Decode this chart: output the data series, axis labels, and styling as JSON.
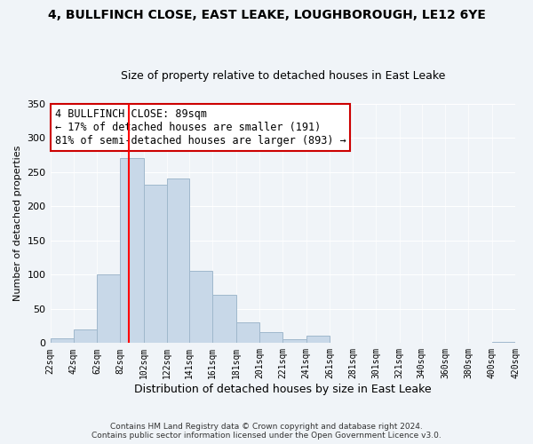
{
  "title": "4, BULLFINCH CLOSE, EAST LEAKE, LOUGHBOROUGH, LE12 6YE",
  "subtitle": "Size of property relative to detached houses in East Leake",
  "xlabel": "Distribution of detached houses by size in East Leake",
  "ylabel": "Number of detached properties",
  "footer_line1": "Contains HM Land Registry data © Crown copyright and database right 2024.",
  "footer_line2": "Contains public sector information licensed under the Open Government Licence v3.0.",
  "bar_left_edges": [
    22,
    42,
    62,
    82,
    102,
    122,
    141,
    161,
    181,
    201,
    221,
    241,
    261,
    281,
    301,
    321,
    340,
    360,
    380,
    400
  ],
  "bar_widths": [
    20,
    20,
    20,
    20,
    20,
    19,
    20,
    20,
    20,
    20,
    20,
    20,
    20,
    20,
    20,
    19,
    20,
    20,
    20,
    20
  ],
  "bar_heights": [
    7,
    20,
    100,
    270,
    231,
    241,
    106,
    70,
    30,
    16,
    6,
    11,
    1,
    0,
    0,
    0,
    0,
    0,
    0,
    2
  ],
  "bar_color": "#c8d8e8",
  "bar_edgecolor": "#a0b8cc",
  "tick_labels": [
    "22sqm",
    "42sqm",
    "62sqm",
    "82sqm",
    "102sqm",
    "122sqm",
    "141sqm",
    "161sqm",
    "181sqm",
    "201sqm",
    "221sqm",
    "241sqm",
    "261sqm",
    "281sqm",
    "301sqm",
    "321sqm",
    "340sqm",
    "360sqm",
    "380sqm",
    "400sqm",
    "420sqm"
  ],
  "xlim_left": 22,
  "xlim_right": 420,
  "ylim": [
    0,
    350
  ],
  "yticks": [
    0,
    50,
    100,
    150,
    200,
    250,
    300,
    350
  ],
  "red_line_x": 89,
  "annotation_line1": "4 BULLFINCH CLOSE: 89sqm",
  "annotation_line2": "← 17% of detached houses are smaller (191)",
  "annotation_line3": "81% of semi-detached houses are larger (893) →",
  "annotation_box_facecolor": "#ffffff",
  "annotation_box_edgecolor": "#cc0000",
  "bg_color": "#f0f4f8",
  "title_fontsize": 10,
  "subtitle_fontsize": 9
}
